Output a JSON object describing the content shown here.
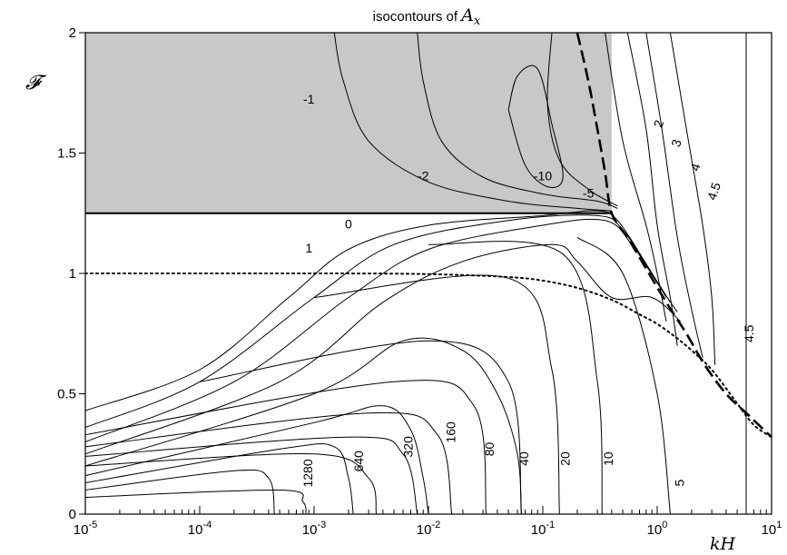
{
  "chart_data": {
    "type": "line",
    "title": "isocontours of ",
    "title_symbol": "A",
    "title_symbol_sub": "x",
    "xlabel": "kH",
    "ylabel": "𝓕",
    "x_scale": "log",
    "xlim": [
      1e-05,
      10
    ],
    "ylim": [
      0,
      2
    ],
    "x_ticks": [
      {
        "base": "10",
        "exp": "-5"
      },
      {
        "base": "10",
        "exp": "-4"
      },
      {
        "base": "10",
        "exp": "-3"
      },
      {
        "base": "10",
        "exp": "-2"
      },
      {
        "base": "10",
        "exp": "-1"
      },
      {
        "base": "10",
        "exp": "0"
      },
      {
        "base": "10",
        "exp": "1"
      }
    ],
    "y_ticks": [
      "0",
      "0.5",
      "1",
      "1.5",
      "2"
    ],
    "shaded_region": {
      "x": [
        1e-05,
        0.4
      ],
      "y": [
        1.25,
        2
      ],
      "color": "#c8c8c8"
    },
    "boundary_line": {
      "y": 1.25
    },
    "dotted_curve": [
      [
        1e-05,
        1.0
      ],
      [
        0.001,
        1.0
      ],
      [
        0.01,
        0.997
      ],
      [
        0.05,
        0.985
      ],
      [
        0.1,
        0.97
      ],
      [
        0.2,
        0.94
      ],
      [
        0.4,
        0.89
      ],
      [
        0.7,
        0.83
      ],
      [
        1.0,
        0.79
      ],
      [
        1.5,
        0.73
      ],
      [
        2.0,
        0.68
      ],
      [
        3.0,
        0.6
      ],
      [
        5.0,
        0.46
      ],
      [
        7.0,
        0.37
      ],
      [
        10.0,
        0.32
      ]
    ],
    "dashed_curve": [
      [
        0.2,
        2.0
      ],
      [
        0.25,
        1.8
      ],
      [
        0.3,
        1.6
      ],
      [
        0.35,
        1.42
      ],
      [
        0.4,
        1.25
      ],
      [
        0.55,
        1.15
      ],
      [
        0.8,
        1.02
      ],
      [
        1.2,
        0.88
      ],
      [
        1.8,
        0.75
      ],
      [
        2.6,
        0.62
      ],
      [
        4.0,
        0.5
      ],
      [
        6.0,
        0.42
      ],
      [
        10.0,
        0.32
      ]
    ],
    "contours": [
      {
        "label": "-1",
        "points": [
          [
            0.0015,
            2.0
          ],
          [
            0.0018,
            1.8
          ],
          [
            0.003,
            1.55
          ],
          [
            0.01,
            1.38
          ],
          [
            0.05,
            1.3
          ],
          [
            0.2,
            1.27
          ],
          [
            0.4,
            1.26
          ]
        ]
      },
      {
        "label": "-2",
        "points": [
          [
            0.008,
            2.0
          ],
          [
            0.009,
            1.8
          ],
          [
            0.013,
            1.55
          ],
          [
            0.03,
            1.4
          ],
          [
            0.1,
            1.33
          ],
          [
            0.3,
            1.3
          ],
          [
            0.45,
            1.27
          ]
        ]
      },
      {
        "label": "-5",
        "points": [
          [
            0.12,
            2.0
          ],
          [
            0.11,
            1.7
          ],
          [
            0.14,
            1.47
          ],
          [
            0.25,
            1.35
          ],
          [
            0.45,
            1.28
          ]
        ]
      },
      {
        "label": "-10",
        "points": [
          [
            0.05,
            1.68
          ],
          [
            0.06,
            1.82
          ],
          [
            0.09,
            1.85
          ],
          [
            0.12,
            1.62
          ],
          [
            0.15,
            1.4
          ],
          [
            0.11,
            1.36
          ],
          [
            0.07,
            1.45
          ],
          [
            0.05,
            1.68
          ]
        ]
      },
      {
        "label": "0",
        "points": [
          [
            1e-05,
            1.25
          ],
          [
            0.4,
            1.25
          ]
        ]
      },
      {
        "label": "1",
        "points": [
          [
            1e-05,
            0.43
          ],
          [
            0.0001,
            0.6
          ],
          [
            0.0006,
            0.9
          ],
          [
            0.002,
            1.1
          ],
          [
            0.01,
            1.2
          ],
          [
            0.1,
            1.24
          ],
          [
            0.3,
            1.26
          ],
          [
            0.45,
            1.22
          ],
          [
            0.8,
            1.04
          ],
          [
            1.2,
            0.9
          ]
        ]
      },
      {
        "label": "",
        "points": [
          [
            1e-05,
            0.36
          ],
          [
            0.0001,
            0.55
          ],
          [
            0.001,
            0.9
          ],
          [
            0.005,
            1.12
          ],
          [
            0.05,
            1.22
          ],
          [
            0.3,
            1.24
          ],
          [
            0.5,
            1.18
          ],
          [
            0.9,
            1.0
          ],
          [
            1.3,
            0.88
          ]
        ]
      },
      {
        "label": "",
        "points": [
          [
            1e-05,
            0.3
          ],
          [
            0.0002,
            0.55
          ],
          [
            0.002,
            0.9
          ],
          [
            0.01,
            1.1
          ],
          [
            0.1,
            1.2
          ],
          [
            0.35,
            1.22
          ],
          [
            0.6,
            1.12
          ],
          [
            1.0,
            0.96
          ],
          [
            1.5,
            0.84
          ]
        ]
      },
      {
        "label": "",
        "points": [
          [
            1e-05,
            0.25
          ],
          [
            0.0005,
            0.55
          ],
          [
            0.004,
            0.88
          ],
          [
            0.02,
            1.05
          ],
          [
            0.12,
            1.12
          ],
          [
            0.2,
            1.05
          ],
          [
            0.4,
            0.9
          ],
          [
            0.9,
            0.9
          ],
          [
            1.6,
            0.8
          ]
        ]
      },
      {
        "label": "",
        "points": [
          [
            1e-05,
            0.2
          ],
          [
            0.001,
            0.5
          ],
          [
            0.006,
            0.72
          ],
          [
            0.02,
            0.68
          ],
          [
            0.04,
            0.5
          ],
          [
            0.06,
            0.25
          ],
          [
            0.065,
            0.0
          ]
        ]
      },
      {
        "label": "",
        "points": [
          [
            1e-05,
            0.16
          ],
          [
            0.001,
            0.38
          ],
          [
            0.004,
            0.45
          ],
          [
            0.007,
            0.35
          ],
          [
            0.009,
            0.15
          ],
          [
            0.01,
            0.0
          ]
        ]
      },
      {
        "label": "",
        "points": [
          [
            1e-05,
            0.13
          ],
          [
            0.0005,
            0.27
          ],
          [
            0.0015,
            0.28
          ],
          [
            0.002,
            0.15
          ],
          [
            0.0022,
            0.0
          ]
        ]
      },
      {
        "label": "",
        "points": [
          [
            1e-05,
            0.1
          ],
          [
            0.0002,
            0.18
          ],
          [
            0.0004,
            0.15
          ],
          [
            0.00045,
            0.0
          ]
        ]
      },
      {
        "label": "1280",
        "points": [
          [
            1e-05,
            0.07
          ],
          [
            0.0005,
            0.1
          ],
          [
            0.0008,
            0.05
          ],
          [
            0.00085,
            0.0
          ]
        ]
      },
      {
        "label": "640",
        "points": [
          [
            1e-05,
            0.2
          ],
          [
            0.001,
            0.25
          ],
          [
            0.003,
            0.15
          ],
          [
            0.0035,
            0.0
          ]
        ]
      },
      {
        "label": "320",
        "points": [
          [
            1e-05,
            0.24
          ],
          [
            0.002,
            0.32
          ],
          [
            0.006,
            0.25
          ],
          [
            0.008,
            0.0
          ]
        ]
      },
      {
        "label": "160",
        "points": [
          [
            1e-05,
            0.28
          ],
          [
            0.003,
            0.42
          ],
          [
            0.012,
            0.33
          ],
          [
            0.016,
            0.0
          ]
        ]
      },
      {
        "label": "80",
        "points": [
          [
            1e-05,
            0.33
          ],
          [
            0.005,
            0.55
          ],
          [
            0.025,
            0.45
          ],
          [
            0.032,
            0.0
          ]
        ]
      },
      {
        "label": "40",
        "points": [
          [
            0.0001,
            0.55
          ],
          [
            0.01,
            0.72
          ],
          [
            0.05,
            0.55
          ],
          [
            0.065,
            0.0
          ]
        ]
      },
      {
        "label": "20",
        "points": [
          [
            0.001,
            0.9
          ],
          [
            0.05,
            0.98
          ],
          [
            0.12,
            0.6
          ],
          [
            0.14,
            0.0
          ]
        ]
      },
      {
        "label": "10",
        "points": [
          [
            0.01,
            1.12
          ],
          [
            0.15,
            1.08
          ],
          [
            0.3,
            0.55
          ],
          [
            0.33,
            0.0
          ]
        ]
      },
      {
        "label": "5",
        "points": [
          [
            0.2,
            1.15
          ],
          [
            0.5,
            1.0
          ],
          [
            1.0,
            0.5
          ],
          [
            1.3,
            0.0
          ]
        ]
      },
      {
        "label": "2",
        "points": [
          [
            0.35,
            2.0
          ],
          [
            0.5,
            1.55
          ],
          [
            0.8,
            1.2
          ],
          [
            1.0,
            1.0
          ],
          [
            1.2,
            0.8
          ]
        ]
      },
      {
        "label": "3",
        "points": [
          [
            0.55,
            2.0
          ],
          [
            0.8,
            1.6
          ],
          [
            1.0,
            1.2
          ],
          [
            1.3,
            0.9
          ],
          [
            1.5,
            0.7
          ]
        ]
      },
      {
        "label": "4",
        "points": [
          [
            0.8,
            2.0
          ],
          [
            1.1,
            1.6
          ],
          [
            1.5,
            1.15
          ],
          [
            2.0,
            0.85
          ],
          [
            2.5,
            0.65
          ]
        ]
      },
      {
        "label": "4.5",
        "points": [
          [
            1.3,
            2.0
          ],
          [
            1.8,
            1.6
          ],
          [
            2.5,
            1.2
          ],
          [
            3.0,
            0.9
          ],
          [
            3.2,
            0.62
          ]
        ]
      },
      {
        "label": "4.5",
        "points": [
          [
            6.0,
            2.0
          ],
          [
            6.0,
            1.5
          ],
          [
            6.0,
            1.0
          ],
          [
            6.0,
            0.5
          ],
          [
            6.0,
            0.0
          ]
        ]
      }
    ],
    "contour_labels": [
      {
        "text": "-1",
        "x": 0.0009,
        "y": 1.72
      },
      {
        "text": "-2",
        "x": 0.009,
        "y": 1.4
      },
      {
        "text": "-10",
        "x": 0.1,
        "y": 1.4
      },
      {
        "text": "-5",
        "x": 0.25,
        "y": 1.33
      },
      {
        "text": "0",
        "x": 0.002,
        "y": 1.2
      },
      {
        "text": "1",
        "x": 0.0009,
        "y": 1.1
      },
      {
        "text": "2",
        "x": 1.05,
        "y": 1.62
      },
      {
        "text": "3",
        "x": 1.5,
        "y": 1.54
      },
      {
        "text": "4",
        "x": 2.2,
        "y": 1.44
      },
      {
        "text": "4.5",
        "x": 3.2,
        "y": 1.34
      },
      {
        "text": "4.5",
        "x": 6.5,
        "y": 0.75
      },
      {
        "text": "1280",
        "x": 0.0009,
        "y": 0.17
      },
      {
        "text": "640",
        "x": 0.0025,
        "y": 0.22
      },
      {
        "text": "320",
        "x": 0.0068,
        "y": 0.28
      },
      {
        "text": "160",
        "x": 0.016,
        "y": 0.34
      },
      {
        "text": "80",
        "x": 0.035,
        "y": 0.27
      },
      {
        "text": "40",
        "x": 0.07,
        "y": 0.23
      },
      {
        "text": "20",
        "x": 0.16,
        "y": 0.23
      },
      {
        "text": "10",
        "x": 0.38,
        "y": 0.23
      },
      {
        "text": "5",
        "x": 1.6,
        "y": 0.13
      }
    ]
  }
}
